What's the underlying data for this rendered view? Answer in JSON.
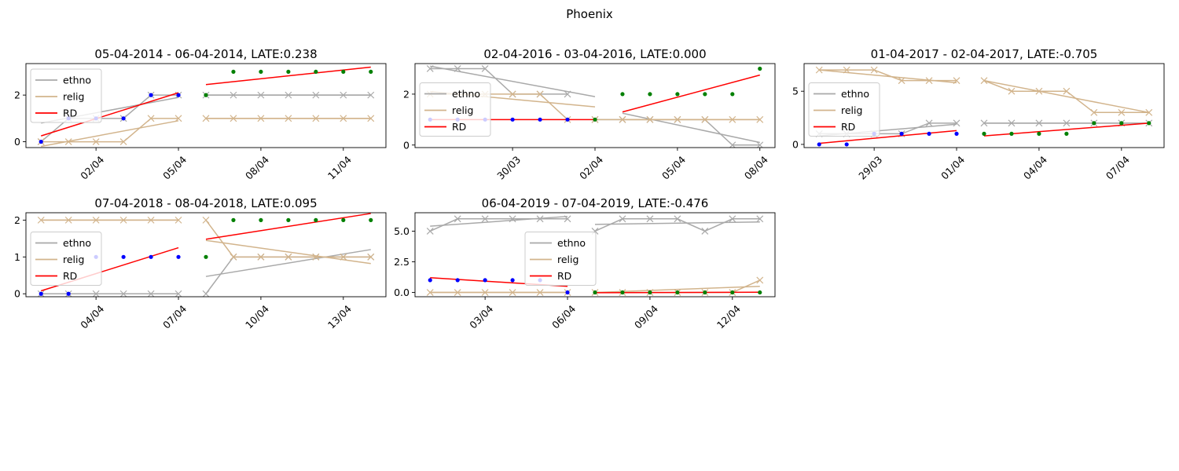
{
  "figure": {
    "title": "Phoenix"
  },
  "colors": {
    "ethno": "#a9a9a9",
    "relig": "#d2b48c",
    "rd": "#ff0000",
    "before": "#0000ff",
    "after": "#008000"
  },
  "legend": [
    "ethno",
    "relig",
    "RD"
  ],
  "chart_data": [
    {
      "type": "line",
      "title": "05-04-2014 - 06-04-2014, LATE:0.238",
      "x": [
        -6,
        -5,
        -4,
        -3,
        -2,
        -1,
        0,
        1,
        2,
        3,
        4,
        5,
        6
      ],
      "xticks": [
        -4,
        -1,
        2,
        5
      ],
      "xticklabels": [
        "02/04",
        "05/04",
        "08/04",
        "11/04"
      ],
      "yticks": [
        0,
        2
      ],
      "yticklabels": [
        "0",
        "2"
      ],
      "ylim": [
        -0.25,
        3.35
      ],
      "legend_position": "upper left",
      "ethno": [
        0,
        1,
        1,
        1,
        2,
        2,
        2,
        2,
        2,
        2,
        2,
        2,
        2
      ],
      "relig": [
        0,
        0,
        0,
        0,
        1,
        1,
        1,
        1,
        1,
        1,
        1,
        1,
        1
      ],
      "dots": [
        0,
        1,
        1,
        1,
        2,
        2,
        2,
        3,
        3,
        3,
        3,
        3,
        3
      ],
      "fit_ethno": [
        [
          -6,
          0.8
        ],
        [
          -1,
          1.9
        ],
        [
          0,
          2
        ],
        [
          6,
          2
        ]
      ],
      "fit_relig": [
        [
          -6,
          -0.2
        ],
        [
          -1,
          0.9
        ],
        [
          0,
          1
        ],
        [
          6,
          1
        ]
      ],
      "fit_rd": [
        [
          -6,
          0.25
        ],
        [
          -1,
          2.1
        ],
        [
          0,
          2.45
        ],
        [
          6,
          3.2
        ]
      ]
    },
    {
      "type": "line",
      "title": "02-04-2016 - 03-04-2016, LATE:0.000",
      "x": [
        -6,
        -5,
        -4,
        -3,
        -2,
        -1,
        0,
        1,
        2,
        3,
        4,
        5,
        6
      ],
      "xticks": [
        -3,
        0,
        3,
        6
      ],
      "xticklabels": [
        "30/03",
        "02/04",
        "05/04",
        "08/04"
      ],
      "yticks": [
        0,
        2
      ],
      "yticklabels": [
        "0",
        "2"
      ],
      "ylim": [
        -0.1,
        3.2
      ],
      "legend_position": "center left",
      "ethno": [
        3,
        3,
        3,
        2,
        2,
        2,
        1,
        1,
        1,
        1,
        1,
        0,
        0
      ],
      "relig": [
        2,
        2,
        2,
        2,
        2,
        1,
        1,
        1,
        1,
        1,
        1,
        1,
        1
      ],
      "dots": [
        1,
        1,
        1,
        1,
        1,
        1,
        1,
        2,
        2,
        2,
        2,
        2,
        3
      ],
      "fit_ethno": [
        [
          -6,
          3.1
        ],
        [
          0,
          1.9
        ],
        [
          1,
          1.25
        ],
        [
          6,
          0.1
        ]
      ],
      "fit_relig": [
        [
          -6,
          2.1
        ],
        [
          0,
          1.5
        ],
        [
          1,
          1
        ],
        [
          6,
          1
        ]
      ],
      "fit_rd": [
        [
          -6,
          1
        ],
        [
          0,
          1
        ],
        [
          1,
          1.3
        ],
        [
          6,
          2.75
        ]
      ]
    },
    {
      "type": "line",
      "title": "01-04-2017 - 02-04-2017, LATE:-0.705",
      "x": [
        -6,
        -5,
        -4,
        -3,
        -2,
        -1,
        0,
        1,
        2,
        3,
        4,
        5,
        6
      ],
      "xticks": [
        -4,
        -1,
        2,
        5
      ],
      "xticklabels": [
        "29/03",
        "01/04",
        "04/04",
        "07/04"
      ],
      "yticks": [
        0,
        5
      ],
      "yticklabels": [
        "0",
        "5"
      ],
      "ylim": [
        -0.3,
        7.6
      ],
      "legend_position": "center left",
      "ethno": [
        1,
        1,
        1,
        1,
        2,
        2,
        2,
        2,
        2,
        2,
        2,
        2,
        2
      ],
      "relig": [
        7,
        7,
        7,
        6,
        6,
        6,
        6,
        5,
        5,
        5,
        3,
        3,
        3
      ],
      "dots": [
        0,
        0,
        1,
        1,
        1,
        1,
        1,
        1,
        1,
        1,
        2,
        2,
        2
      ],
      "fit_ethno": [
        [
          -6,
          0.8
        ],
        [
          -1,
          1.9
        ],
        [
          0,
          2
        ],
        [
          6,
          2
        ]
      ],
      "fit_relig": [
        [
          -6,
          7
        ],
        [
          -1,
          5.8
        ],
        [
          0,
          6
        ],
        [
          6,
          3
        ]
      ],
      "fit_rd": [
        [
          -6,
          0.1
        ],
        [
          -1,
          1.3
        ],
        [
          0,
          0.8
        ],
        [
          6,
          2
        ]
      ]
    },
    {
      "type": "line",
      "title": "07-04-2018 - 08-04-2018, LATE:0.095",
      "x": [
        -6,
        -5,
        -4,
        -3,
        -2,
        -1,
        0,
        1,
        2,
        3,
        4,
        5,
        6
      ],
      "xticks": [
        -4,
        -1,
        2,
        5
      ],
      "xticklabels": [
        "04/04",
        "07/04",
        "10/04",
        "13/04"
      ],
      "yticks": [
        0,
        1,
        2
      ],
      "yticklabels": [
        "0",
        "1",
        "2"
      ],
      "ylim": [
        -0.08,
        2.2
      ],
      "legend_position": "center left",
      "ethno": [
        0,
        0,
        0,
        0,
        0,
        0,
        0,
        1,
        1,
        1,
        1,
        1,
        1
      ],
      "relig": [
        2,
        2,
        2,
        2,
        2,
        2,
        2,
        1,
        1,
        1,
        1,
        1,
        1
      ],
      "dots": [
        0,
        0,
        1,
        1,
        1,
        1,
        1,
        2,
        2,
        2,
        2,
        2,
        2
      ],
      "fit_ethno": [
        [
          -6,
          0
        ],
        [
          -1,
          0
        ],
        [
          0,
          0.47
        ],
        [
          6,
          1.2
        ]
      ],
      "fit_relig": [
        [
          -6,
          2
        ],
        [
          -1,
          2
        ],
        [
          0,
          1.45
        ],
        [
          6,
          0.82
        ]
      ],
      "fit_rd": [
        [
          -6,
          0.08
        ],
        [
          -1,
          1.25
        ],
        [
          0,
          1.48
        ],
        [
          6,
          2.18
        ]
      ]
    },
    {
      "type": "line",
      "title": "06-04-2019 - 07-04-2019, LATE:-0.476",
      "x": [
        -6,
        -5,
        -4,
        -3,
        -2,
        -1,
        0,
        1,
        2,
        3,
        4,
        5,
        6
      ],
      "xticks": [
        -4,
        -1,
        2,
        5
      ],
      "xticklabels": [
        "03/04",
        "06/04",
        "09/04",
        "12/04"
      ],
      "yticks": [
        0,
        2.5,
        5
      ],
      "yticklabels": [
        "0.0",
        "2.5",
        "5.0"
      ],
      "ylim": [
        -0.35,
        6.5
      ],
      "legend_position": "center",
      "ethno": [
        5,
        6,
        6,
        6,
        6,
        6,
        5,
        6,
        6,
        6,
        5,
        6,
        6
      ],
      "relig": [
        0,
        0,
        0,
        0,
        0,
        0,
        0,
        0,
        0,
        0,
        0,
        0,
        1
      ],
      "dots": [
        1,
        1,
        1,
        1,
        1,
        0,
        0,
        0,
        0,
        0,
        0,
        0,
        0
      ],
      "fit_ethno": [
        [
          -6,
          5.4
        ],
        [
          -1,
          6.2
        ],
        [
          0,
          5.55
        ],
        [
          6,
          5.75
        ]
      ],
      "fit_relig": [
        [
          -6,
          0
        ],
        [
          -1,
          0
        ],
        [
          0,
          0
        ],
        [
          6,
          0.5
        ]
      ],
      "fit_rd": [
        [
          -6,
          1.2
        ],
        [
          -1,
          0.5
        ],
        [
          0,
          -0.02
        ],
        [
          6,
          0.02
        ]
      ]
    }
  ]
}
